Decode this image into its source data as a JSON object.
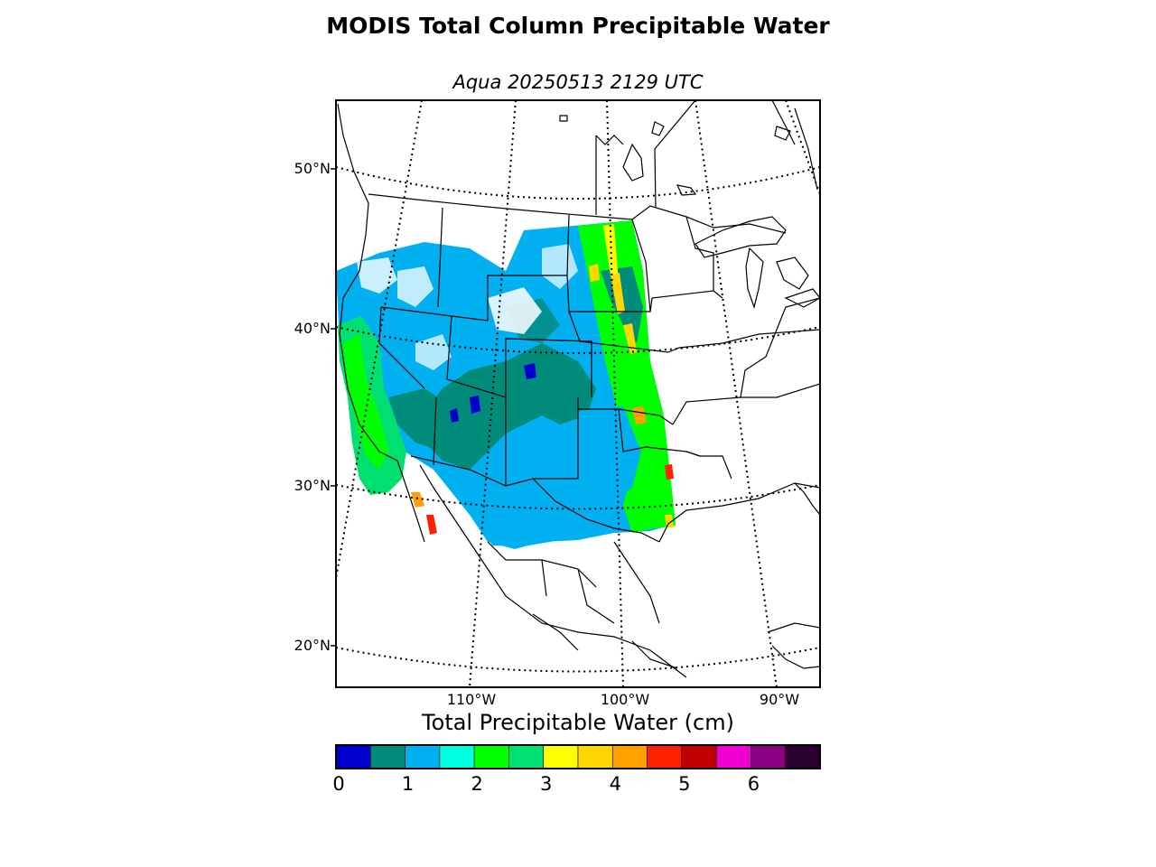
{
  "title": "MODIS Total Column Precipitable Water",
  "subtitle": "Aqua 20250513 2129 UTC",
  "map": {
    "lat_labels": [
      "50°N",
      "40°N",
      "30°N",
      "20°N"
    ],
    "lon_labels": [
      "110°W",
      "100°W",
      "90°W"
    ]
  },
  "colorbar": {
    "title": "Total Precipitable Water (cm)",
    "ticks": [
      "0",
      "1",
      "2",
      "3",
      "4",
      "5",
      "6"
    ],
    "colors": [
      "#0000cc",
      "#008b7a",
      "#00b0f0",
      "#00ffe0",
      "#00ff00",
      "#00e070",
      "#ffff00",
      "#ffd700",
      "#ffa000",
      "#ff2000",
      "#c00000",
      "#ee00d0",
      "#8b0080",
      "#2a0030"
    ]
  }
}
